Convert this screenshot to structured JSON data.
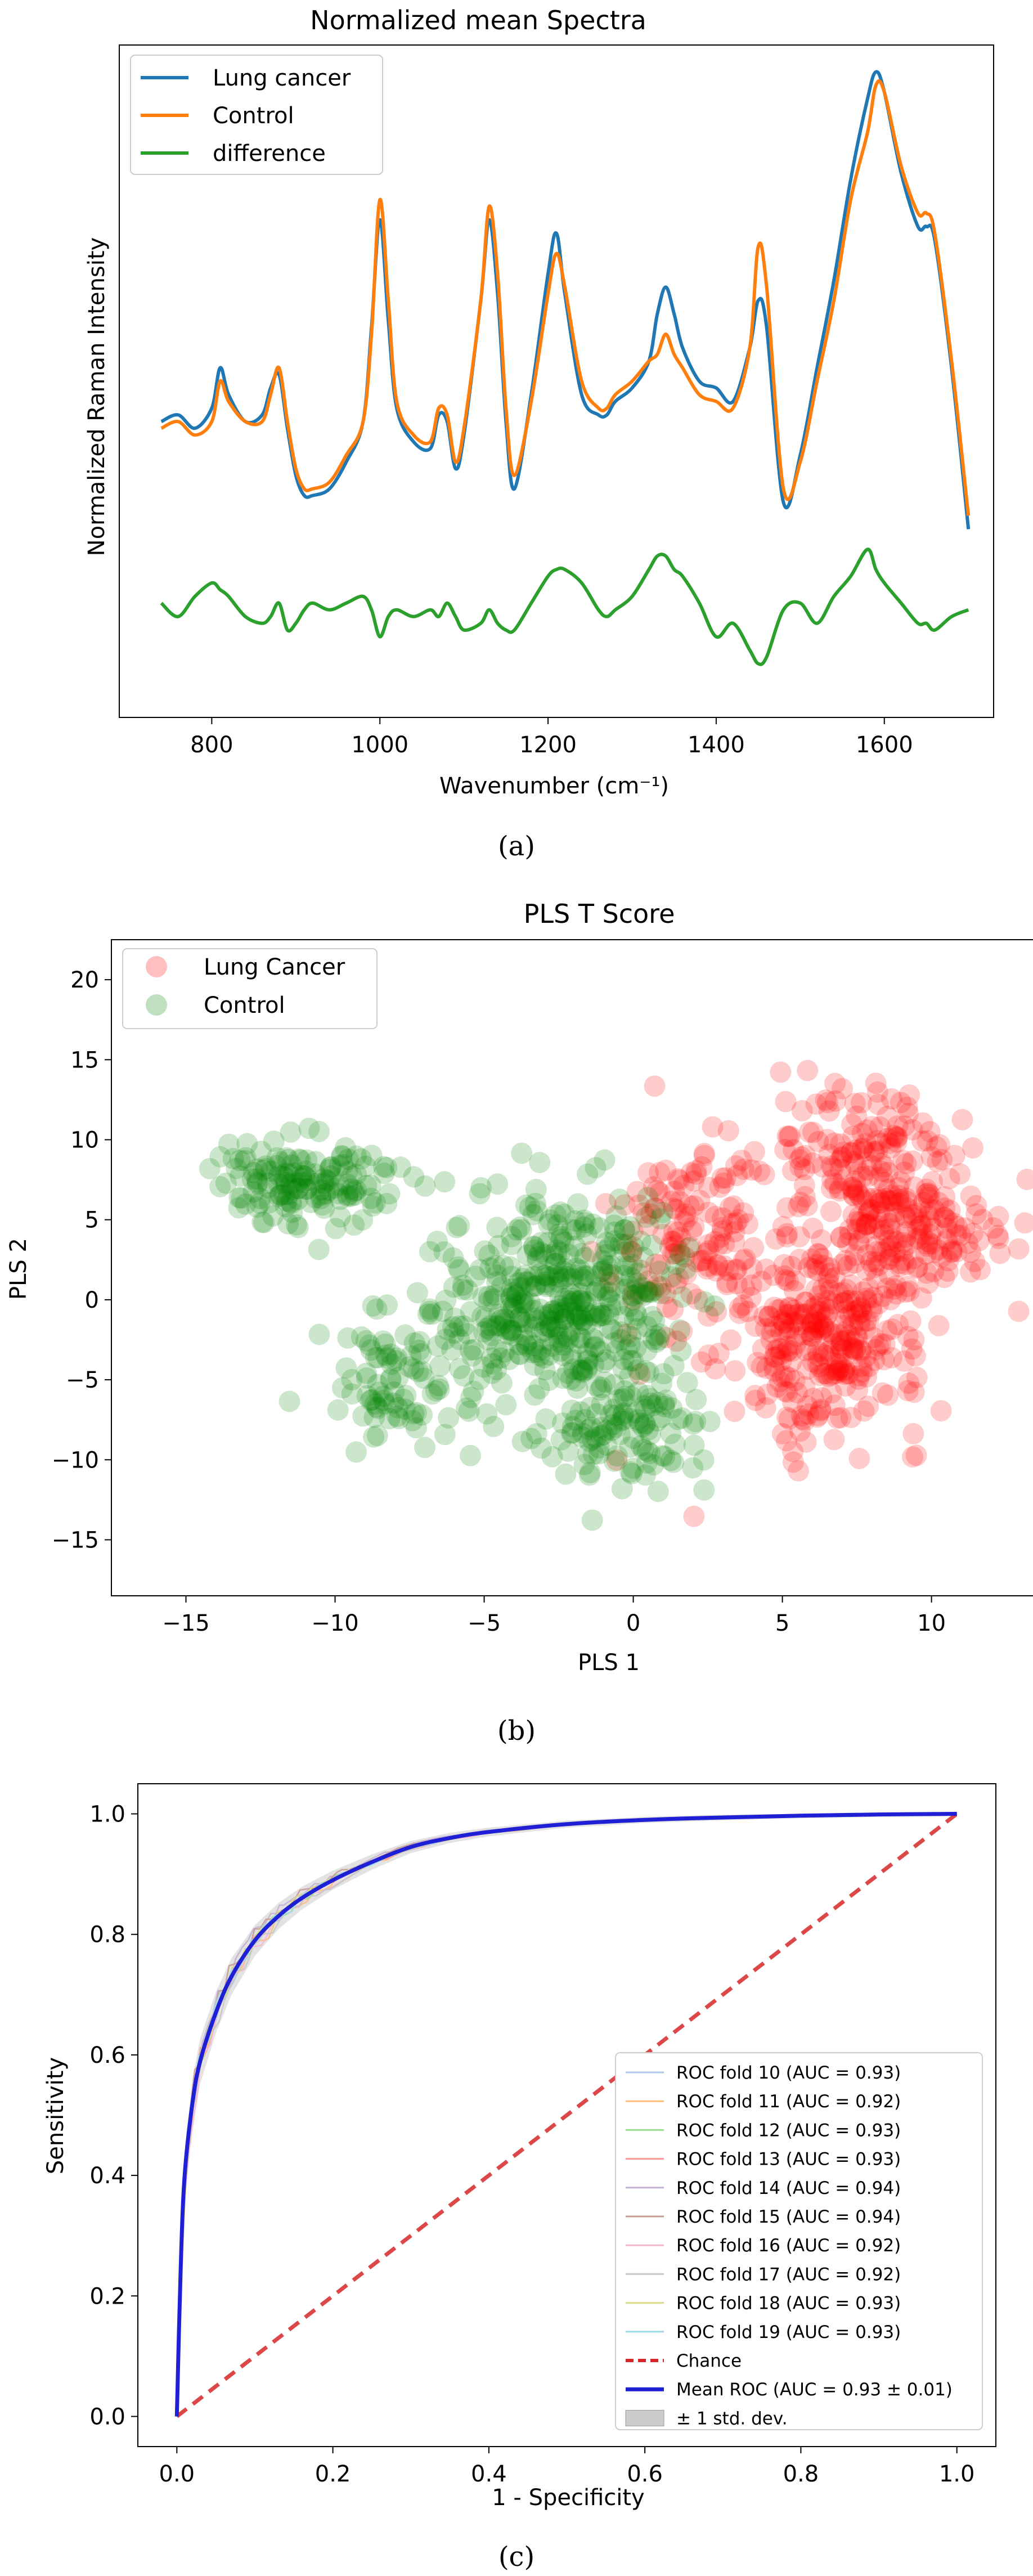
{
  "chart_data": [
    {
      "id": "a",
      "type": "line",
      "title": "Normalized mean Spectra",
      "xlabel": "Wavenumber (cm⁻¹)",
      "ylabel": "Normalized Raman Intensity",
      "xlim": [
        690,
        1730
      ],
      "ylim": [
        0,
        100
      ],
      "xticks": [
        800,
        1000,
        1200,
        1400,
        1600
      ],
      "legend": [
        "Lung cancer",
        "Control",
        "difference"
      ],
      "colors": [
        "#1f77b4",
        "#ff7f0e",
        "#2ca02c"
      ],
      "x": [
        740,
        760,
        780,
        800,
        810,
        820,
        840,
        860,
        870,
        880,
        890,
        900,
        910,
        920,
        940,
        960,
        980,
        990,
        1000,
        1010,
        1020,
        1040,
        1060,
        1070,
        1080,
        1090,
        1100,
        1120,
        1130,
        1140,
        1150,
        1160,
        1180,
        1200,
        1210,
        1220,
        1240,
        1260,
        1270,
        1280,
        1300,
        1320,
        1330,
        1340,
        1350,
        1360,
        1380,
        1400,
        1420,
        1440,
        1450,
        1460,
        1480,
        1500,
        1520,
        1540,
        1560,
        1580,
        1590,
        1600,
        1620,
        1640,
        1650,
        1660,
        1680,
        1700
      ],
      "series": [
        {
          "name": "Lung cancer",
          "values": [
            44,
            45,
            43,
            46,
            52,
            48,
            44,
            45,
            49,
            51,
            43,
            36,
            33,
            33,
            34,
            38,
            44,
            58,
            74,
            59,
            46,
            41,
            40,
            45,
            44,
            37,
            42,
            62,
            74,
            63,
            44,
            34,
            48,
            66,
            72,
            63,
            48,
            45,
            45,
            47,
            49,
            53,
            60,
            64,
            60,
            55,
            50,
            49,
            47,
            55,
            62,
            58,
            32,
            39,
            52,
            65,
            80,
            92,
            96,
            93,
            81,
            73,
            73,
            71,
            52,
            28
          ]
        },
        {
          "name": "Control",
          "values": [
            43,
            44,
            42,
            44,
            50,
            47,
            44,
            44,
            48,
            52,
            44,
            37,
            34,
            34,
            35,
            39,
            44,
            57,
            77,
            62,
            47,
            42,
            41,
            46,
            45,
            38,
            43,
            62,
            76,
            66,
            46,
            36,
            47,
            63,
            69,
            64,
            50,
            46,
            46,
            48,
            50,
            53,
            54,
            57,
            54,
            52,
            48,
            47,
            46,
            55,
            70,
            64,
            34,
            38,
            50,
            62,
            77,
            87,
            94,
            93,
            82,
            75,
            75,
            72,
            53,
            30
          ]
        },
        {
          "name": "difference",
          "values": [
            17,
            15,
            18,
            20,
            19,
            18,
            15,
            14,
            15,
            17,
            13,
            14,
            16,
            17,
            16,
            17,
            18,
            16,
            12,
            15,
            16,
            15,
            16,
            15,
            17,
            15,
            13,
            14,
            16,
            14,
            13,
            13,
            17,
            21,
            22,
            22,
            20,
            16,
            15,
            16,
            18,
            22,
            24,
            24,
            22,
            21,
            17,
            12,
            14,
            10,
            8,
            9,
            16,
            17,
            14,
            18,
            21,
            25,
            22,
            20,
            17,
            14,
            14,
            13,
            15,
            16
          ]
        }
      ]
    },
    {
      "id": "b",
      "type": "scatter",
      "title": "PLS T Score",
      "xlabel": "PLS 1",
      "ylabel": "PLS 2",
      "xlim": [
        -17.5,
        14.8
      ],
      "ylim": [
        -18.5,
        22.5
      ],
      "xticks": [
        -15,
        -10,
        -5,
        0,
        5,
        10
      ],
      "yticks": [
        -15,
        -10,
        -5,
        0,
        5,
        10,
        15,
        20
      ],
      "legend": [
        "Lung Cancer",
        "Control"
      ],
      "colors": [
        "#ff0000",
        "#008000"
      ],
      "series": [
        {
          "name": "Lung Cancer",
          "clusters": [
            {
              "center": [
                6.5,
                -2
              ],
              "spread": [
                3,
                6
              ],
              "n": 320
            },
            {
              "center": [
                8,
                8
              ],
              "spread": [
                3,
                5
              ],
              "n": 180
            },
            {
              "center": [
                2,
                4
              ],
              "spread": [
                2.5,
                6
              ],
              "n": 140
            },
            {
              "center": [
                9.5,
                4
              ],
              "spread": [
                2.5,
                3
              ],
              "n": 110
            }
          ]
        },
        {
          "name": "Control",
          "clusters": [
            {
              "center": [
                -2.5,
                0
              ],
              "spread": [
                3.5,
                5.5
              ],
              "n": 420
            },
            {
              "center": [
                -11,
                7.5
              ],
              "spread": [
                2.5,
                2.5
              ],
              "n": 150
            },
            {
              "center": [
                -8,
                -5
              ],
              "spread": [
                2.5,
                4
              ],
              "n": 90
            },
            {
              "center": [
                0,
                -8
              ],
              "spread": [
                3,
                3.5
              ],
              "n": 120
            }
          ]
        }
      ]
    },
    {
      "id": "c",
      "type": "line",
      "xlabel": "1 - Specificity",
      "ylabel": "Sensitivity",
      "xlim": [
        -0.05,
        1.05
      ],
      "ylim": [
        -0.05,
        1.05
      ],
      "xticks": [
        0.0,
        0.2,
        0.4,
        0.6,
        0.8,
        1.0
      ],
      "yticks": [
        0.0,
        0.2,
        0.4,
        0.6,
        0.8,
        1.0
      ],
      "series": [
        {
          "name": "ROC fold 10 (AUC = 0.93)",
          "auc": 0.93,
          "color": "#aec7e8"
        },
        {
          "name": "ROC fold 11 (AUC = 0.92)",
          "auc": 0.92,
          "color": "#ffbb78"
        },
        {
          "name": "ROC fold 12 (AUC = 0.93)",
          "auc": 0.93,
          "color": "#98df8a"
        },
        {
          "name": "ROC fold 13 (AUC = 0.93)",
          "auc": 0.93,
          "color": "#ff9896"
        },
        {
          "name": "ROC fold 14 (AUC = 0.94)",
          "auc": 0.94,
          "color": "#c5b0d5"
        },
        {
          "name": "ROC fold 15 (AUC = 0.94)",
          "auc": 0.94,
          "color": "#c49c94"
        },
        {
          "name": "ROC fold 16 (AUC = 0.92)",
          "auc": 0.92,
          "color": "#f7b6d2"
        },
        {
          "name": "ROC fold 17 (AUC = 0.92)",
          "auc": 0.92,
          "color": "#c7c7c7"
        },
        {
          "name": "ROC fold 18 (AUC = 0.93)",
          "auc": 0.93,
          "color": "#dbdb8d"
        },
        {
          "name": "ROC fold 19 (AUC = 0.93)",
          "auc": 0.93,
          "color": "#9edae5"
        }
      ],
      "chance": {
        "name": "Chance",
        "x": [
          0,
          1
        ],
        "y": [
          0,
          1
        ],
        "color": "#d62728"
      },
      "mean": {
        "name": "Mean ROC (AUC = 0.93 ± 0.01)",
        "color": "#1f1fd6",
        "x": [
          0,
          0.005,
          0.01,
          0.02,
          0.03,
          0.05,
          0.07,
          0.1,
          0.13,
          0.16,
          0.2,
          0.25,
          0.3,
          0.35,
          0.4,
          0.5,
          0.6,
          0.7,
          0.8,
          0.9,
          1.0
        ],
        "y": [
          0,
          0.25,
          0.4,
          0.52,
          0.59,
          0.67,
          0.73,
          0.79,
          0.83,
          0.86,
          0.89,
          0.92,
          0.945,
          0.96,
          0.97,
          0.983,
          0.99,
          0.994,
          0.997,
          0.999,
          1.0
        ]
      },
      "band": {
        "name": "± 1 std. dev.",
        "color": "#cccccc"
      },
      "legend_loc": "lower-right"
    }
  ],
  "captions": {
    "a": "(a)",
    "b": "(b)",
    "c": "(c)"
  }
}
